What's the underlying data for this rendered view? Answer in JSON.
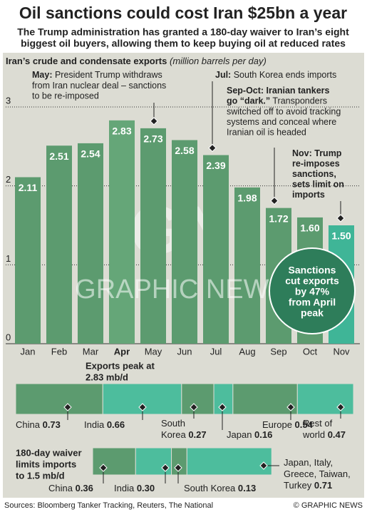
{
  "chart_data": {
    "type": "bar",
    "title": "Oil sanctions could cost Iran $25bn a year",
    "subtitle_lines": [
      "The Trump administration has granted a 180-day waiver to Iran’s eight",
      "biggest oil buyers, allowing them to keep buying oil at reduced rates"
    ],
    "chart_title": "Iran’s crude and condensate exports",
    "units": "(million barrels per day)",
    "categories": [
      "Jan",
      "Feb",
      "Mar",
      "Apr",
      "May",
      "Jun",
      "Jul",
      "Aug",
      "Sep",
      "Oct",
      "Nov"
    ],
    "highlight_index": 3,
    "values": [
      2.11,
      2.51,
      2.54,
      2.83,
      2.73,
      2.58,
      2.39,
      1.98,
      1.72,
      1.6,
      1.5
    ],
    "value_labels": [
      "2.11",
      "2.51",
      "2.54",
      "2.83",
      "2.73",
      "2.58",
      "2.39",
      "1.98",
      "1.72",
      "1.60",
      "1.50"
    ],
    "colors": [
      "#5c9b6f",
      "#5c9b6f",
      "#5c9b6f",
      "#65a678",
      "#5c9b6f",
      "#5c9b6f",
      "#5c9b6f",
      "#5c9b6f",
      "#5c9b6f",
      "#5c9b6f",
      "#3fb597"
    ],
    "ylim": [
      0,
      3
    ],
    "yticks": [
      0,
      1,
      2,
      3
    ],
    "grid": true,
    "annotations": [
      {
        "label_lines": [
          "May:"
        ],
        "lines": [
          "President Trump withdraws",
          "from Iran nuclear deal – sanctions",
          "to be re-imposed"
        ],
        "index": 4
      },
      {
        "label_lines": [
          "Jul:"
        ],
        "lines": [
          "South Korea ends imports"
        ],
        "index": 6
      },
      {
        "label_lines": [
          "Sep-Oct: Iranian tankers",
          "go “dark.”"
        ],
        "lines": [
          "Transponders",
          "switched off to avoid tracking",
          "systems and conceal where",
          "Iranian oil is headed"
        ],
        "index": 8
      },
      {
        "label_lines": [
          "Nov: Trump",
          "re-imposes",
          "sanctions,",
          "sets limit on",
          "imports"
        ],
        "lines": [],
        "index": 10
      }
    ],
    "callout_lines": [
      "Sanctions",
      "cut exports",
      "by 47%",
      "from April",
      "peak"
    ],
    "callout_color": "#2e7d5a",
    "watermark_logo": "GN",
    "watermark": "GRAPHIC NEWS",
    "breakdowns": [
      {
        "title_lines": [
          "Exports peak at",
          "2.83 mb/d"
        ],
        "segments": [
          {
            "name": [
              "China"
            ],
            "value": 0.73,
            "value_label": "0.73"
          },
          {
            "name": [
              "India"
            ],
            "value": 0.66,
            "value_label": "0.66"
          },
          {
            "name": [
              "South",
              "Korea"
            ],
            "value": 0.27,
            "value_label": "0.27"
          },
          {
            "name": [
              "Japan"
            ],
            "value": 0.16,
            "value_label": "0.16"
          },
          {
            "name": [
              "Europe"
            ],
            "value": 0.54,
            "value_label": "0.54"
          },
          {
            "name": [
              "Rest of",
              "world"
            ],
            "value": 0.47,
            "value_label": "0.47"
          }
        ]
      },
      {
        "title_lines": [
          "180-day waiver",
          "limits imports",
          "to 1.5 mb/d"
        ],
        "segments": [
          {
            "name": [
              "China"
            ],
            "value": 0.36,
            "value_label": "0.36"
          },
          {
            "name": [
              "India"
            ],
            "value": 0.3,
            "value_label": "0.30"
          },
          {
            "name": [
              "South Korea"
            ],
            "value": 0.13,
            "value_label": "0.13"
          },
          {
            "name": [
              "Japan, Italy,",
              "Greece, Taiwan,",
              "Turkey"
            ],
            "value": 0.71,
            "value_label": "0.71"
          }
        ]
      }
    ],
    "segment_colors": [
      "#5c9b6f",
      "#4dbd9d"
    ],
    "source": "Sources: Bloomberg Tanker Tracking, Reuters, The National",
    "credit": "© GRAPHIC NEWS"
  }
}
